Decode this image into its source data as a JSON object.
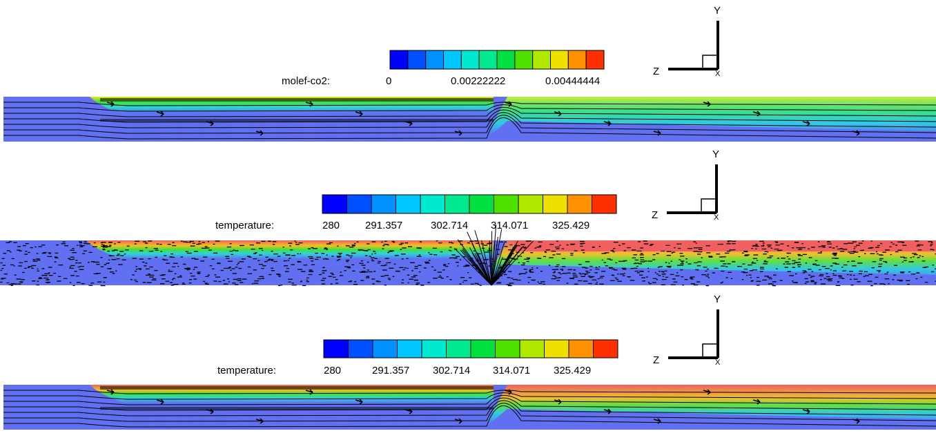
{
  "panels": [
    {
      "colorbar": {
        "label": "molef-co2:",
        "ticks": [
          "0",
          "0.00222222",
          "0.00444444"
        ]
      },
      "axes": {
        "y": "Y",
        "z": "Z",
        "x": "X"
      }
    },
    {
      "colorbar": {
        "label": "temperature:",
        "ticks": [
          "280",
          "291.357",
          "302.714",
          "314.071",
          "325.429"
        ]
      },
      "axes": {
        "y": "Y",
        "z": "Z",
        "x": "X"
      }
    },
    {
      "colorbar": {
        "label": "temperature:",
        "ticks": [
          "280",
          "291.357",
          "302.714",
          "314.071",
          "325.429"
        ]
      },
      "axes": {
        "y": "Y",
        "z": "Z",
        "x": "X"
      }
    }
  ]
}
